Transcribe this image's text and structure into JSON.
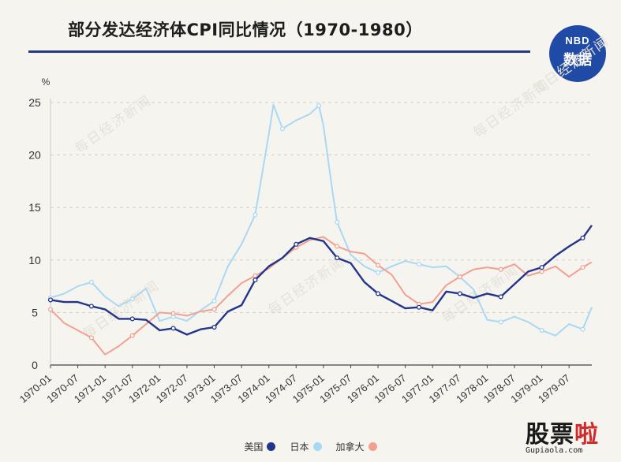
{
  "header": {
    "title": "部分发达经济体CPI同比情况（1970-1980）",
    "badge_line1": "NBD",
    "badge_line2": "数据"
  },
  "footer": {
    "brand_main": "股票",
    "brand_accent": "啦",
    "brand_url": "Gupiaola.com"
  },
  "watermark": "每日经济新闻",
  "colors": {
    "us": "#22358a",
    "jp": "#a9d8f5",
    "ca": "#f3a091",
    "title_rule": "#243a86",
    "badge": "#1f4aa6"
  },
  "chart_data": {
    "type": "line",
    "title": "部分发达经济体CPI同比情况（1970-1980）",
    "ylabel": "%",
    "ylim": [
      0,
      25
    ],
    "yticks": [
      0,
      5,
      10,
      15,
      20,
      25
    ],
    "xlim": [
      "1970-01",
      "1979-12"
    ],
    "xtick_labels": [
      "1970-01",
      "1970-07",
      "1971-01",
      "1971-07",
      "1972-01",
      "1972-07",
      "1973-01",
      "1973-07",
      "1974-01",
      "1974-07",
      "1975-01",
      "1975-07",
      "1976-01",
      "1976-07",
      "1977-01",
      "1977-07",
      "1978-01",
      "1978-07",
      "1979-01",
      "1979-07"
    ],
    "grid": "horizontal-dashed",
    "legend_position": "bottom-center",
    "series": [
      {
        "name": "美国",
        "color": "#22358a",
        "points": [
          [
            "1970-01",
            6.2
          ],
          [
            "1970-04",
            6.0
          ],
          [
            "1970-07",
            6.0
          ],
          [
            "1970-10",
            5.6
          ],
          [
            "1971-01",
            5.3
          ],
          [
            "1971-04",
            4.4
          ],
          [
            "1971-07",
            4.4
          ],
          [
            "1971-10",
            4.3
          ],
          [
            "1972-01",
            3.3
          ],
          [
            "1972-04",
            3.5
          ],
          [
            "1972-07",
            2.9
          ],
          [
            "1972-10",
            3.4
          ],
          [
            "1973-01",
            3.6
          ],
          [
            "1973-04",
            5.1
          ],
          [
            "1973-07",
            5.7
          ],
          [
            "1973-10",
            8.1
          ],
          [
            "1974-01",
            9.4
          ],
          [
            "1974-04",
            10.2
          ],
          [
            "1974-07",
            11.5
          ],
          [
            "1974-10",
            12.1
          ],
          [
            "1975-01",
            11.8
          ],
          [
            "1975-04",
            10.2
          ],
          [
            "1975-07",
            9.7
          ],
          [
            "1975-10",
            7.9
          ],
          [
            "1976-01",
            6.8
          ],
          [
            "1976-04",
            6.1
          ],
          [
            "1976-07",
            5.4
          ],
          [
            "1976-10",
            5.5
          ],
          [
            "1977-01",
            5.2
          ],
          [
            "1977-04",
            7.0
          ],
          [
            "1977-07",
            6.8
          ],
          [
            "1977-10",
            6.4
          ],
          [
            "1978-01",
            6.8
          ],
          [
            "1978-04",
            6.5
          ],
          [
            "1978-07",
            7.7
          ],
          [
            "1978-10",
            8.9
          ],
          [
            "1979-01",
            9.3
          ],
          [
            "1979-04",
            10.4
          ],
          [
            "1979-07",
            11.3
          ],
          [
            "1979-10",
            12.1
          ],
          [
            "1979-12",
            13.3
          ]
        ]
      },
      {
        "name": "日本",
        "color": "#a9d8f5",
        "points": [
          [
            "1970-01",
            6.4
          ],
          [
            "1970-04",
            6.8
          ],
          [
            "1970-07",
            7.5
          ],
          [
            "1970-10",
            7.9
          ],
          [
            "1971-01",
            6.5
          ],
          [
            "1971-04",
            5.6
          ],
          [
            "1971-07",
            6.3
          ],
          [
            "1971-10",
            7.3
          ],
          [
            "1972-01",
            4.2
          ],
          [
            "1972-04",
            4.6
          ],
          [
            "1972-07",
            4.2
          ],
          [
            "1972-10",
            5.2
          ],
          [
            "1973-01",
            6.1
          ],
          [
            "1973-04",
            9.4
          ],
          [
            "1973-07",
            11.5
          ],
          [
            "1973-10",
            14.3
          ],
          [
            "1974-01",
            22.0
          ],
          [
            "1974-02",
            24.8
          ],
          [
            "1974-04",
            22.5
          ],
          [
            "1974-07",
            23.3
          ],
          [
            "1974-10",
            23.9
          ],
          [
            "1974-12",
            24.7
          ],
          [
            "1975-01",
            22.8
          ],
          [
            "1975-03",
            16.5
          ],
          [
            "1975-04",
            13.6
          ],
          [
            "1975-07",
            10.5
          ],
          [
            "1975-10",
            9.4
          ],
          [
            "1976-01",
            8.8
          ],
          [
            "1976-04",
            9.4
          ],
          [
            "1976-07",
            9.9
          ],
          [
            "1976-10",
            9.6
          ],
          [
            "1977-01",
            9.3
          ],
          [
            "1977-04",
            9.4
          ],
          [
            "1977-07",
            8.4
          ],
          [
            "1977-10",
            7.2
          ],
          [
            "1978-01",
            4.3
          ],
          [
            "1978-04",
            4.1
          ],
          [
            "1978-07",
            4.6
          ],
          [
            "1978-10",
            4.1
          ],
          [
            "1979-01",
            3.3
          ],
          [
            "1979-04",
            2.8
          ],
          [
            "1979-07",
            3.9
          ],
          [
            "1979-10",
            3.4
          ],
          [
            "1979-12",
            5.5
          ]
        ]
      },
      {
        "name": "加拿大",
        "color": "#f3a091",
        "points": [
          [
            "1970-01",
            5.3
          ],
          [
            "1970-04",
            4.0
          ],
          [
            "1970-07",
            3.3
          ],
          [
            "1970-10",
            2.6
          ],
          [
            "1971-01",
            1.0
          ],
          [
            "1971-04",
            1.8
          ],
          [
            "1971-07",
            2.8
          ],
          [
            "1971-10",
            3.9
          ],
          [
            "1972-01",
            5.0
          ],
          [
            "1972-04",
            4.9
          ],
          [
            "1972-07",
            4.7
          ],
          [
            "1972-10",
            5.1
          ],
          [
            "1973-01",
            5.3
          ],
          [
            "1973-04",
            6.6
          ],
          [
            "1973-07",
            7.8
          ],
          [
            "1973-10",
            8.5
          ],
          [
            "1974-01",
            9.2
          ],
          [
            "1974-04",
            10.2
          ],
          [
            "1974-07",
            11.2
          ],
          [
            "1974-10",
            11.9
          ],
          [
            "1975-01",
            12.2
          ],
          [
            "1975-04",
            11.3
          ],
          [
            "1975-07",
            10.8
          ],
          [
            "1975-10",
            10.6
          ],
          [
            "1976-01",
            9.5
          ],
          [
            "1976-04",
            8.6
          ],
          [
            "1976-07",
            6.7
          ],
          [
            "1976-10",
            5.8
          ],
          [
            "1977-01",
            6.0
          ],
          [
            "1977-04",
            7.6
          ],
          [
            "1977-07",
            8.4
          ],
          [
            "1977-10",
            9.1
          ],
          [
            "1978-01",
            9.3
          ],
          [
            "1978-04",
            9.1
          ],
          [
            "1978-07",
            9.6
          ],
          [
            "1978-10",
            8.5
          ],
          [
            "1979-01",
            8.9
          ],
          [
            "1979-04",
            9.4
          ],
          [
            "1979-07",
            8.4
          ],
          [
            "1979-10",
            9.3
          ],
          [
            "1979-12",
            9.8
          ]
        ]
      }
    ]
  }
}
